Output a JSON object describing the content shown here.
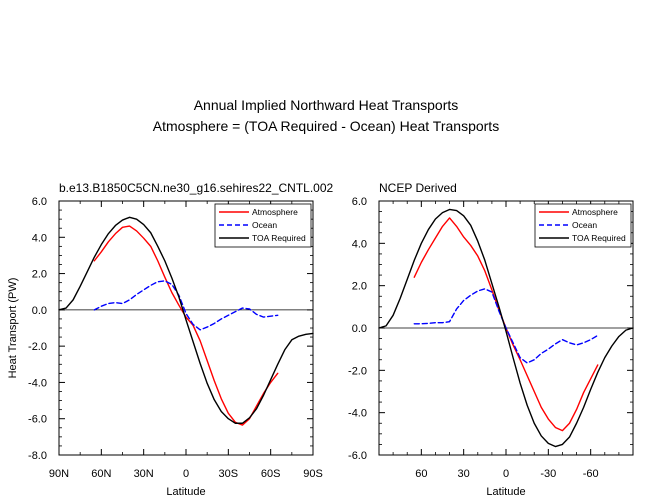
{
  "figure": {
    "title_line1": "Annual Implied Northward Heat Transports",
    "title_line2": "Atmosphere = (TOA Required - Ocean) Heat Transports"
  },
  "colors": {
    "atmosphere": "#ff0000",
    "ocean": "#0000ff",
    "toa": "#000000",
    "zero_line": "#000000"
  },
  "legend_labels": [
    "Atmosphere",
    "Ocean",
    "TOA Required"
  ],
  "chart_data": [
    {
      "type": "line",
      "title": "b.e13.B1850C5CN.ne30_g16.sehires22_CNTL.002",
      "xlabel": "Latitude",
      "ylabel": "Heat Transport (PW)",
      "xlim": [
        90,
        -90
      ],
      "ylim": [
        -8,
        6
      ],
      "xticks": [
        90,
        60,
        30,
        0,
        -30,
        -60,
        -90
      ],
      "xtick_labels": [
        "90N",
        "60N",
        "30N",
        "0",
        "30S",
        "60S",
        "90S"
      ],
      "yticks": [
        -8,
        -6,
        -4,
        -2,
        0,
        2,
        4,
        6
      ],
      "ytick_labels": [
        "-8.0",
        "-6.0",
        "-4.0",
        "-2.0",
        "0.0",
        "2.0",
        "4.0",
        "6.0"
      ],
      "legend": "top-right",
      "series": [
        {
          "name": "Atmosphere",
          "style": "solid",
          "x": [
            65,
            60,
            55,
            50,
            45,
            40,
            35,
            30,
            25,
            20,
            15,
            10,
            5,
            0,
            -5,
            -10,
            -15,
            -20,
            -25,
            -30,
            -35,
            -40,
            -45,
            -50,
            -55,
            -60,
            -65
          ],
          "y": [
            2.7,
            3.2,
            3.75,
            4.2,
            4.55,
            4.62,
            4.35,
            3.95,
            3.5,
            2.7,
            1.8,
            0.95,
            0.25,
            -0.4,
            -0.85,
            -1.7,
            -2.8,
            -3.9,
            -4.9,
            -5.7,
            -6.2,
            -6.35,
            -6.0,
            -5.3,
            -4.6,
            -4.0,
            -3.5
          ]
        },
        {
          "name": "Ocean",
          "style": "dashed",
          "x": [
            65,
            60,
            55,
            50,
            45,
            40,
            35,
            30,
            25,
            20,
            15,
            10,
            5,
            0,
            -5,
            -10,
            -15,
            -20,
            -25,
            -30,
            -35,
            -40,
            -45,
            -50,
            -55,
            -60,
            -65
          ],
          "y": [
            0.0,
            0.2,
            0.35,
            0.4,
            0.35,
            0.55,
            0.85,
            1.1,
            1.35,
            1.55,
            1.6,
            1.4,
            0.8,
            -0.2,
            -0.8,
            -1.1,
            -0.95,
            -0.75,
            -0.5,
            -0.3,
            -0.1,
            0.1,
            0.05,
            -0.25,
            -0.4,
            -0.35,
            -0.3
          ]
        },
        {
          "name": "TOA Required",
          "style": "solid",
          "x": [
            90,
            85,
            80,
            75,
            70,
            65,
            60,
            55,
            50,
            45,
            40,
            35,
            30,
            25,
            20,
            15,
            10,
            5,
            0,
            -5,
            -10,
            -15,
            -20,
            -25,
            -30,
            -35,
            -40,
            -45,
            -50,
            -55,
            -60,
            -65,
            -70,
            -75,
            -80,
            -85,
            -90
          ],
          "y": [
            0.0,
            0.1,
            0.55,
            1.3,
            2.1,
            2.9,
            3.6,
            4.2,
            4.65,
            4.95,
            5.1,
            5.0,
            4.7,
            4.25,
            3.5,
            2.7,
            1.75,
            0.7,
            -0.55,
            -1.75,
            -2.95,
            -4.05,
            -4.95,
            -5.6,
            -6.0,
            -6.25,
            -6.25,
            -5.95,
            -5.45,
            -4.7,
            -3.85,
            -3.0,
            -2.2,
            -1.65,
            -1.45,
            -1.35,
            -1.3
          ]
        }
      ]
    },
    {
      "type": "line",
      "title": "NCEP Derived",
      "xlabel": "Latitude",
      "ylabel": "",
      "xlim": [
        90,
        -90
      ],
      "ylim": [
        -6,
        6
      ],
      "xticks": [
        60,
        30,
        0,
        -30,
        -60
      ],
      "xtick_labels": [
        "60",
        "30",
        "0",
        "-30",
        "-60"
      ],
      "yticks": [
        -6,
        -4,
        -2,
        0,
        2,
        4,
        6
      ],
      "ytick_labels": [
        "-6.0",
        "-4.0",
        "-2.0",
        "0.0",
        "2.0",
        "4.0",
        "6.0"
      ],
      "legend": "top-right",
      "series": [
        {
          "name": "Atmosphere",
          "style": "solid",
          "x": [
            65,
            60,
            55,
            50,
            45,
            40,
            35,
            30,
            25,
            20,
            15,
            10,
            5,
            0,
            -5,
            -10,
            -15,
            -20,
            -25,
            -30,
            -35,
            -40,
            -45,
            -50,
            -55,
            -60,
            -65
          ],
          "y": [
            2.4,
            3.1,
            3.7,
            4.25,
            4.8,
            5.2,
            4.8,
            4.3,
            3.9,
            3.4,
            2.7,
            1.8,
            0.85,
            0.0,
            -0.8,
            -1.5,
            -2.25,
            -3.0,
            -3.75,
            -4.3,
            -4.7,
            -4.85,
            -4.5,
            -3.85,
            -3.05,
            -2.4,
            -1.75
          ]
        },
        {
          "name": "Ocean",
          "style": "dashed",
          "x": [
            65,
            60,
            55,
            50,
            45,
            40,
            35,
            30,
            25,
            20,
            15,
            10,
            5,
            0,
            -5,
            -10,
            -15,
            -20,
            -25,
            -30,
            -35,
            -40,
            -45,
            -50,
            -55,
            -60,
            -65
          ],
          "y": [
            0.2,
            0.2,
            0.22,
            0.25,
            0.25,
            0.3,
            0.9,
            1.3,
            1.55,
            1.75,
            1.85,
            1.7,
            0.8,
            0.0,
            -0.7,
            -1.4,
            -1.65,
            -1.5,
            -1.2,
            -1.0,
            -0.75,
            -0.55,
            -0.7,
            -0.8,
            -0.7,
            -0.55,
            -0.35
          ]
        },
        {
          "name": "TOA Required",
          "style": "solid",
          "x": [
            90,
            85,
            80,
            75,
            70,
            65,
            60,
            55,
            50,
            45,
            40,
            35,
            30,
            25,
            20,
            15,
            10,
            5,
            0,
            -5,
            -10,
            -15,
            -20,
            -25,
            -30,
            -35,
            -40,
            -45,
            -50,
            -55,
            -60,
            -65,
            -70,
            -75,
            -80,
            -85,
            -90
          ],
          "y": [
            0.0,
            0.1,
            0.6,
            1.4,
            2.3,
            3.2,
            4.0,
            4.65,
            5.15,
            5.45,
            5.6,
            5.55,
            5.3,
            4.85,
            4.1,
            3.2,
            2.1,
            1.0,
            -0.15,
            -1.4,
            -2.6,
            -3.65,
            -4.5,
            -5.1,
            -5.45,
            -5.6,
            -5.5,
            -5.15,
            -4.5,
            -3.75,
            -2.9,
            -2.1,
            -1.4,
            -0.85,
            -0.4,
            -0.1,
            0.0
          ]
        }
      ]
    }
  ]
}
